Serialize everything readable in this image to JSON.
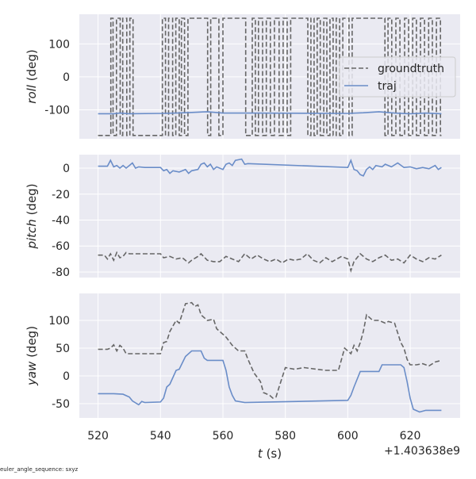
{
  "footer_note": "euler_angle_sequence: sxyz",
  "colors": {
    "background": "#eaeaf2",
    "grid": "#ffffff",
    "groundtruth": "#666666",
    "traj": "#6a8dc8"
  },
  "chart_data": [
    {
      "type": "line",
      "ylabel_var": "roll",
      "ylabel_unit": " (deg)",
      "xlim": [
        514,
        636
      ],
      "ylim": [
        -188,
        190
      ],
      "yticks": [
        -100,
        0,
        100
      ],
      "grid": true,
      "legend": {
        "placement": "right",
        "entries": [
          "groundtruth",
          "traj"
        ]
      },
      "series": [
        {
          "name": "groundtruth",
          "style": "dashed",
          "drawstyle": "steps-post",
          "x": [
            520,
            524.1,
            524.8,
            525.9,
            527.1,
            527.9,
            529.2,
            530.2,
            531.2,
            540.6,
            541.6,
            542.6,
            543.9,
            544.9,
            546.0,
            546.7,
            547.7,
            548.8,
            555.1,
            556.1,
            558.7,
            560.0,
            567.3,
            569.4,
            570.4,
            571.4,
            572.7,
            573.9,
            575.2,
            576.5,
            578.0,
            579.3,
            580.6,
            581.7,
            587.2,
            588.2,
            589.2,
            590.2,
            591.2,
            592.3,
            593.3,
            594.3,
            595.3,
            596.3,
            597.4,
            598.4,
            600.4,
            601.4,
            611.9,
            612.9,
            614.1,
            615.4,
            616.7,
            618.2,
            619.5,
            620.8,
            622.0,
            623.3,
            624.6,
            625.9,
            627.1,
            628.4,
            629.7,
            630
          ],
          "y": [
            -178,
            178,
            -178,
            178,
            -178,
            178,
            -178,
            178,
            -178,
            178,
            -178,
            178,
            -178,
            178,
            -178,
            178,
            -178,
            178,
            -178,
            178,
            -178,
            178,
            -178,
            178,
            -178,
            178,
            -178,
            178,
            -178,
            178,
            -178,
            178,
            -178,
            178,
            -178,
            178,
            -178,
            178,
            -178,
            178,
            -178,
            178,
            -178,
            178,
            -178,
            178,
            -178,
            178,
            -178,
            178,
            -178,
            178,
            -178,
            178,
            -178,
            178,
            -178,
            178,
            -178,
            178,
            -178,
            178,
            -178,
            -178
          ]
        },
        {
          "name": "traj",
          "style": "solid",
          "x": [
            520,
            525,
            527,
            530,
            540,
            545,
            550,
            555,
            560,
            570,
            600,
            605,
            610,
            615,
            620,
            625,
            630
          ],
          "y": [
            -112,
            -112,
            -110,
            -112,
            -111,
            -110,
            -108,
            -106,
            -110,
            -110,
            -111,
            -109,
            -106,
            -110,
            -112,
            -110,
            -112
          ]
        }
      ]
    },
    {
      "type": "line",
      "ylabel_var": "pitch",
      "ylabel_unit": " (deg)",
      "xlim": [
        514,
        636
      ],
      "ylim": [
        -84.3,
        10.4
      ],
      "yticks": [
        -80,
        -60,
        -40,
        -20,
        0
      ],
      "grid": true,
      "series": [
        {
          "name": "groundtruth",
          "style": "dashed",
          "x": [
            520,
            522,
            523,
            524,
            525,
            526,
            527,
            528,
            529,
            530,
            535,
            540,
            541,
            543,
            545,
            547,
            549,
            550,
            552,
            553,
            555,
            557,
            559,
            561,
            563,
            565,
            567,
            569,
            571,
            573,
            575,
            577,
            579,
            581,
            583,
            585,
            587,
            589,
            591,
            593,
            595,
            598,
            600,
            601,
            602,
            604,
            606,
            608,
            610,
            612,
            614,
            616,
            618,
            620,
            622,
            624,
            626,
            628,
            630
          ],
          "y": [
            -67,
            -67,
            -70,
            -66,
            -71,
            -65,
            -69,
            -68,
            -65,
            -66,
            -66,
            -66,
            -69,
            -68,
            -70,
            -69,
            -73,
            -71,
            -68,
            -66,
            -71,
            -72,
            -72,
            -68,
            -70,
            -72,
            -66,
            -70,
            -67,
            -70,
            -72,
            -70,
            -73,
            -70,
            -71,
            -70,
            -66,
            -71,
            -73,
            -69,
            -72,
            -68,
            -70,
            -79,
            -72,
            -66,
            -70,
            -72,
            -69,
            -67,
            -71,
            -70,
            -73,
            -67,
            -70,
            -72,
            -69,
            -70,
            -67
          ]
        },
        {
          "name": "traj",
          "style": "solid",
          "x": [
            520,
            523,
            524,
            525,
            526,
            527,
            528,
            529,
            530,
            531,
            532,
            533,
            535,
            540,
            541,
            542,
            543,
            544,
            546,
            548,
            549,
            550,
            552,
            553,
            554,
            555,
            556,
            557,
            558,
            560,
            561,
            562,
            563,
            564,
            566,
            567,
            568,
            600,
            601,
            602,
            603,
            604,
            605,
            606,
            607,
            608,
            609,
            611,
            612,
            614,
            616,
            618,
            620,
            622,
            624,
            626,
            628,
            629,
            630
          ],
          "y": [
            1.5,
            1.5,
            6,
            1,
            2,
            0,
            2,
            0,
            2,
            4,
            0,
            1,
            0.5,
            0.5,
            -2,
            -1,
            -4,
            -2,
            -3,
            -1,
            -4,
            -2,
            -1,
            3,
            4,
            1,
            3,
            -1,
            1,
            -1,
            3,
            4,
            2,
            6,
            7,
            3,
            3.5,
            0.5,
            6,
            -1,
            -2,
            -5,
            -6,
            -1,
            1,
            -1,
            2,
            1,
            3,
            1,
            4,
            0.5,
            1,
            -0.5,
            0.5,
            -0.5,
            2,
            -1,
            0.5
          ]
        }
      ]
    },
    {
      "type": "line",
      "ylabel_var": "yaw",
      "ylabel_unit": " (deg)",
      "xlabel_var": "t",
      "xlabel_unit": " (s)",
      "x_offset_label": "+1.403638e9",
      "xlim": [
        514,
        636
      ],
      "ylim": [
        -75.7,
        148.6
      ],
      "xticks": [
        520,
        540,
        560,
        580,
        600,
        620
      ],
      "yticks": [
        -50,
        0,
        50,
        100
      ],
      "grid": true,
      "series": [
        {
          "name": "groundtruth",
          "style": "dashed",
          "x": [
            520,
            523,
            524,
            525,
            526,
            527,
            528,
            529,
            530,
            535,
            540,
            541,
            542,
            543,
            545,
            546,
            548,
            550,
            551,
            552,
            553,
            555,
            557,
            558,
            560,
            561,
            563,
            565,
            567,
            568,
            570,
            572,
            573,
            575,
            576,
            577,
            578,
            580,
            583,
            586,
            590,
            593,
            597,
            598,
            599,
            601,
            602,
            603,
            604,
            605,
            606,
            608,
            610,
            612,
            613,
            615,
            617,
            618,
            619,
            620,
            622,
            624,
            626,
            628,
            630
          ],
          "y": [
            48,
            48,
            50,
            56,
            45,
            55,
            50,
            40,
            40,
            40,
            40,
            60,
            62,
            80,
            100,
            95,
            130,
            132,
            125,
            128,
            110,
            100,
            102,
            85,
            75,
            70,
            55,
            45,
            45,
            30,
            5,
            -10,
            -30,
            -35,
            -40,
            -38,
            -20,
            15,
            12,
            15,
            12,
            10,
            10,
            30,
            50,
            40,
            55,
            45,
            60,
            80,
            110,
            100,
            100,
            95,
            98,
            95,
            60,
            50,
            30,
            20,
            20,
            22,
            18,
            25,
            28
          ]
        },
        {
          "name": "traj",
          "style": "solid",
          "x": [
            520,
            525,
            528,
            530,
            531,
            533,
            534,
            535,
            540,
            541,
            542,
            543,
            545,
            546,
            548,
            550,
            553,
            554,
            555,
            560,
            561,
            562,
            563,
            564,
            567,
            600,
            601,
            602,
            604,
            610,
            611,
            617,
            618,
            619,
            620,
            621,
            623,
            625,
            630
          ],
          "y": [
            -32,
            -32,
            -33,
            -38,
            -45,
            -52,
            -46,
            -48,
            -47,
            -40,
            -20,
            -15,
            10,
            12,
            35,
            45,
            45,
            32,
            28,
            28,
            10,
            -20,
            -35,
            -45,
            -48,
            -44,
            -35,
            -20,
            8,
            8,
            20,
            20,
            15,
            -10,
            -40,
            -60,
            -65,
            -62,
            -62
          ]
        }
      ]
    }
  ]
}
